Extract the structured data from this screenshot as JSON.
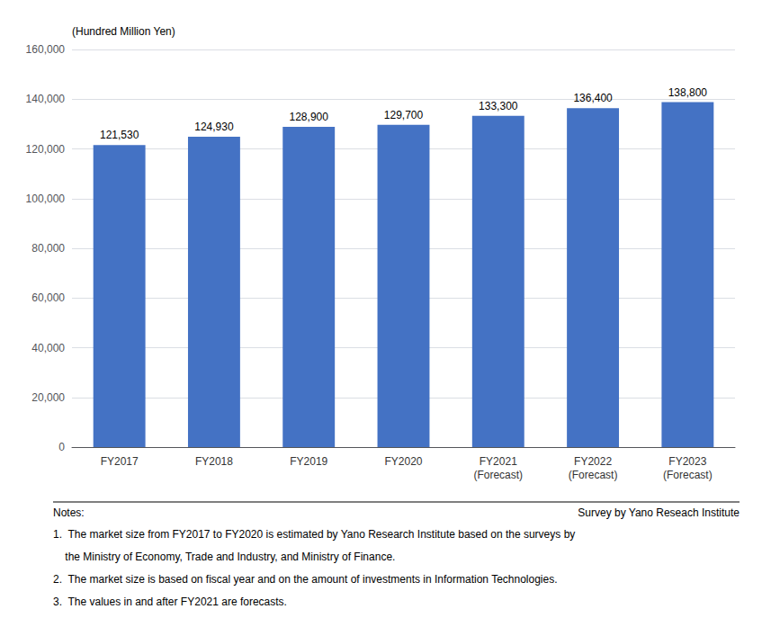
{
  "chart_data": {
    "type": "bar",
    "categories": [
      "FY2017",
      "FY2018",
      "FY2019",
      "FY2020",
      "FY2021\n(Forecast)",
      "FY2022\n(Forecast)",
      "FY2023\n(Forecast)"
    ],
    "values": [
      121530,
      124930,
      128900,
      129700,
      133300,
      136400,
      138800
    ],
    "value_labels": [
      "121,530",
      "124,930",
      "128,900",
      "129,700",
      "133,300",
      "136,400",
      "138,800"
    ],
    "data_labels": true,
    "color": "#4472C4",
    "ylabel": "(Hundred Million Yen)",
    "ylim": [
      0,
      160000
    ],
    "yticks": [
      0,
      {
        "value": 20000,
        "label": "20,000"
      },
      {
        "value": 40000,
        "label": "40,000"
      },
      {
        "value": 60000,
        "label": "60,000"
      },
      {
        "value": 80000,
        "label": "80,000"
      },
      {
        "value": 100000,
        "label": "100,000"
      },
      {
        "value": 120000,
        "label": "120,000"
      },
      {
        "value": 140000,
        "label": "140,000"
      },
      {
        "value": 160000,
        "label": "160,000"
      }
    ],
    "grid": true,
    "notes_title": "Notes:",
    "source": "Survey by Yano Reseach Institute",
    "notes": [
      "1.  The market size from FY2017 to FY2020 is estimated by Yano Research Institute based on the surveys by",
      "    the Ministry of Economy, Trade and Industry, and Ministry of Finance.",
      "2.  The market size is based on fiscal year and on the amount of investments in Information Technologies.",
      "3.  The values in and after FY2021 are forecasts."
    ]
  }
}
